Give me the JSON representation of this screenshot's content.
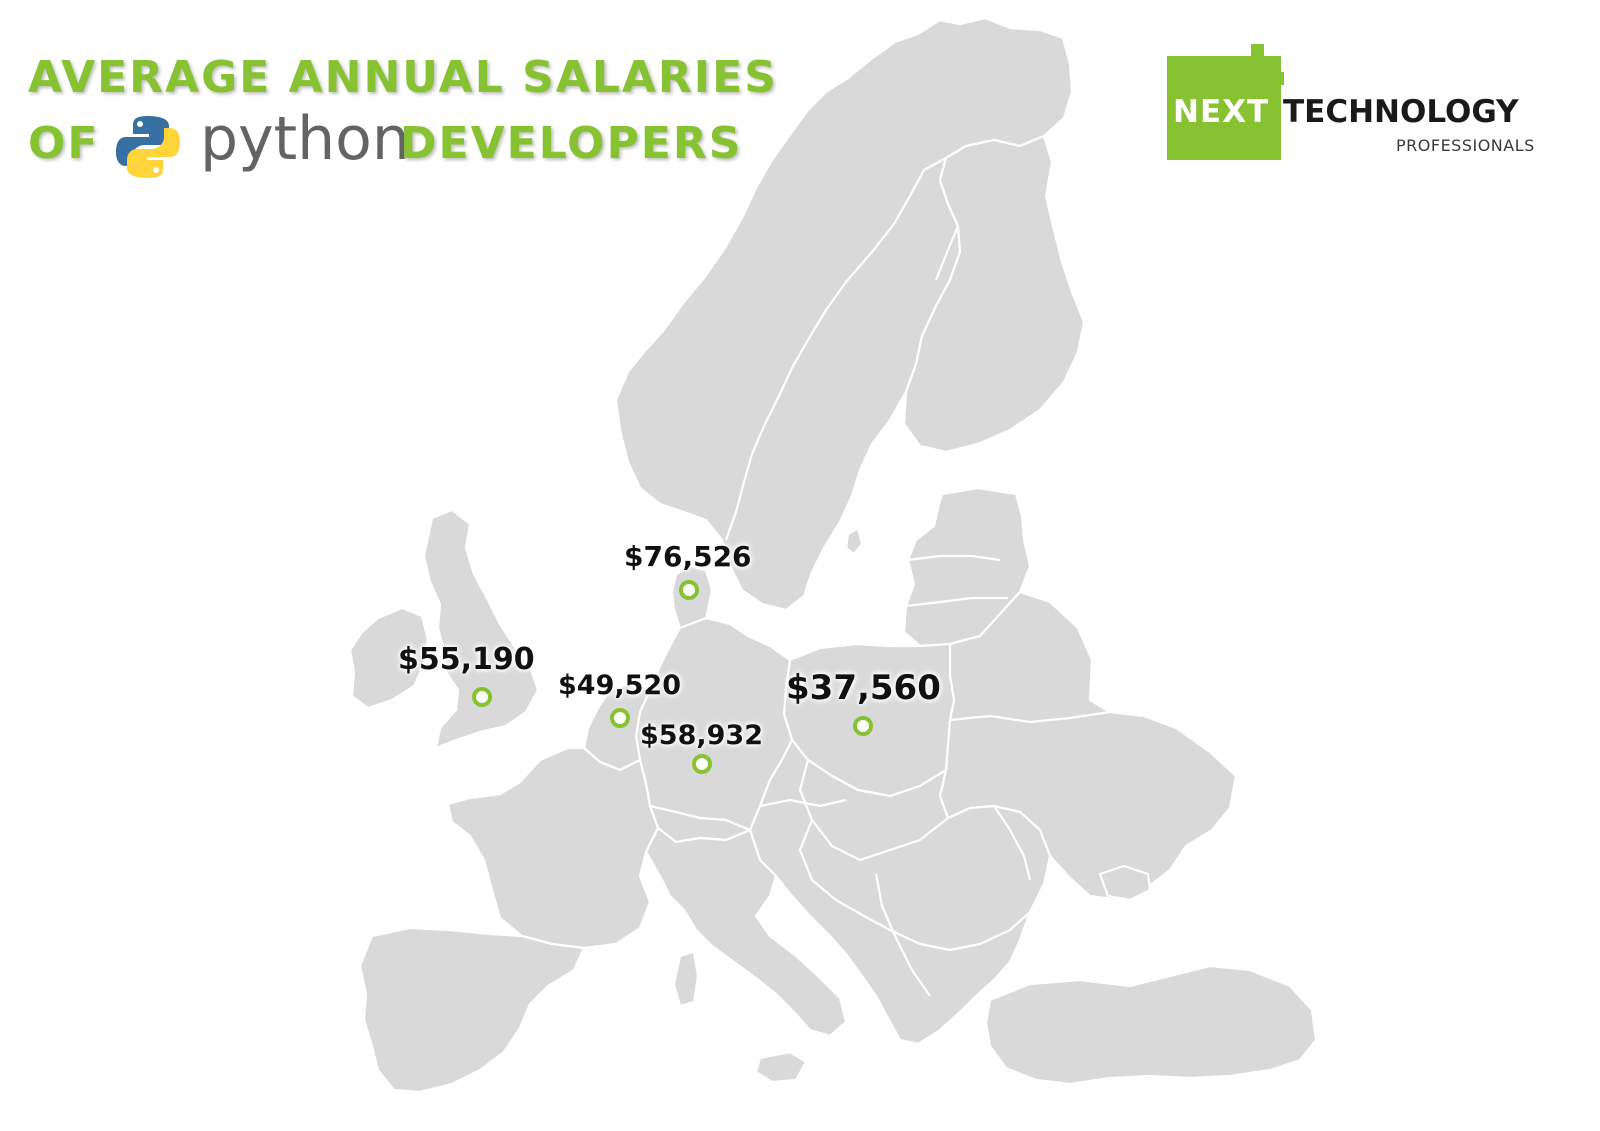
{
  "title": {
    "line1": "AVERAGE ANNUAL SALARIES",
    "line2_prefix": "OF",
    "line2_python": "python",
    "line2_suffix": "DEVELOPERS"
  },
  "brand": {
    "part1": "NEXT",
    "part2": "TECHNOLOGY",
    "tagline": "PROFESSIONALS",
    "color": "#86c232"
  },
  "icons": {
    "python_logo": "python-logo-icon",
    "marker": "circle-marker-icon"
  },
  "colors": {
    "accent": "#86c232",
    "land": "#d9d9d9",
    "python_blue": "#3771a3",
    "python_yellow": "#ffd43b"
  },
  "salaries": [
    {
      "value": "$76,526"
    },
    {
      "value": "$55,190"
    },
    {
      "value": "$49,520"
    },
    {
      "value": "$58,932"
    },
    {
      "value": "$37,560"
    }
  ]
}
